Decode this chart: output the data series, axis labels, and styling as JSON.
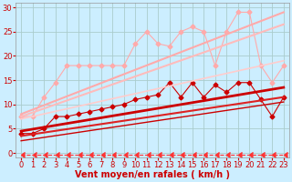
{
  "background_color": "#cceeff",
  "grid_color": "#aacccc",
  "xlabel": "Vent moyen/en rafales ( km/h )",
  "xlabel_color": "#cc0000",
  "xlabel_fontsize": 7,
  "tick_color": "#cc0000",
  "tick_fontsize": 6,
  "xlim": [
    -0.5,
    23.5
  ],
  "ylim": [
    -1,
    31
  ],
  "yticks": [
    0,
    5,
    10,
    15,
    20,
    25,
    30
  ],
  "xticks": [
    0,
    1,
    2,
    3,
    4,
    5,
    6,
    7,
    8,
    9,
    10,
    11,
    12,
    13,
    14,
    15,
    16,
    17,
    18,
    19,
    20,
    21,
    22,
    23
  ],
  "series": [
    {
      "x": [
        0,
        1,
        2,
        3,
        4,
        5,
        6,
        7,
        8,
        9,
        10,
        11,
        12,
        13,
        14,
        15,
        16,
        17,
        18,
        19,
        20,
        21,
        22,
        23
      ],
      "y": [
        -0.3,
        -0.3,
        -0.3,
        -0.3,
        -0.3,
        -0.3,
        -0.3,
        -0.3,
        -0.3,
        -0.3,
        -0.3,
        -0.3,
        -0.3,
        -0.3,
        -0.3,
        -0.3,
        -0.3,
        -0.3,
        -0.3,
        -0.3,
        -0.3,
        -0.3,
        -0.3,
        -0.3
      ],
      "color": "#ff3333",
      "linewidth": 0.8,
      "marker": 4,
      "markersize": 4,
      "linestyle": "--",
      "alpha": 1.0
    },
    {
      "x": [
        0,
        1,
        2,
        3,
        4,
        5,
        6,
        7,
        8,
        9,
        10,
        11,
        12,
        13,
        14,
        15,
        16,
        17,
        18,
        19,
        20,
        21,
        22,
        23
      ],
      "y": [
        4,
        4,
        5,
        7.5,
        7.5,
        8,
        8.5,
        9,
        9.5,
        10,
        11,
        11.5,
        12,
        14.5,
        11.5,
        14.5,
        11.5,
        14,
        12.5,
        14.5,
        14.5,
        11,
        7.5,
        11.5
      ],
      "color": "#cc0000",
      "linewidth": 0.8,
      "marker": "D",
      "markersize": 2.5,
      "linestyle": "-",
      "alpha": 1.0
    },
    {
      "x": [
        0,
        23
      ],
      "y": [
        4.5,
        13.5
      ],
      "color": "#cc0000",
      "linewidth": 2.0,
      "marker": null,
      "markersize": 0,
      "linestyle": "-",
      "alpha": 1.0
    },
    {
      "x": [
        0,
        23
      ],
      "y": [
        3.5,
        11.5
      ],
      "color": "#dd2222",
      "linewidth": 1.5,
      "marker": null,
      "markersize": 0,
      "linestyle": "-",
      "alpha": 1.0
    },
    {
      "x": [
        0,
        23
      ],
      "y": [
        2.5,
        10.5
      ],
      "color": "#cc0000",
      "linewidth": 1.0,
      "marker": null,
      "markersize": 0,
      "linestyle": "-",
      "alpha": 1.0
    },
    {
      "x": [
        0,
        1,
        2,
        3,
        4,
        5,
        6,
        7,
        8,
        9,
        10,
        11,
        12,
        13,
        14,
        15,
        16,
        17,
        18,
        19,
        20,
        21,
        22,
        23
      ],
      "y": [
        7.5,
        7.5,
        11.5,
        14.5,
        18,
        18,
        18,
        18,
        18,
        18,
        22.5,
        25,
        22.5,
        22,
        25,
        26,
        25,
        18,
        25,
        29,
        29,
        18,
        14.5,
        18
      ],
      "color": "#ffaaaa",
      "linewidth": 0.8,
      "marker": "D",
      "markersize": 2.5,
      "linestyle": "-",
      "alpha": 1.0
    },
    {
      "x": [
        0,
        23
      ],
      "y": [
        8.0,
        29.0
      ],
      "color": "#ffaaaa",
      "linewidth": 1.5,
      "marker": null,
      "markersize": 0,
      "linestyle": "-",
      "alpha": 1.0
    },
    {
      "x": [
        0,
        23
      ],
      "y": [
        7.5,
        26.5
      ],
      "color": "#ffbbbb",
      "linewidth": 1.5,
      "marker": null,
      "markersize": 0,
      "linestyle": "-",
      "alpha": 1.0
    },
    {
      "x": [
        0,
        23
      ],
      "y": [
        7.0,
        19.0
      ],
      "color": "#ffcccc",
      "linewidth": 1.2,
      "marker": null,
      "markersize": 0,
      "linestyle": "-",
      "alpha": 1.0
    }
  ]
}
